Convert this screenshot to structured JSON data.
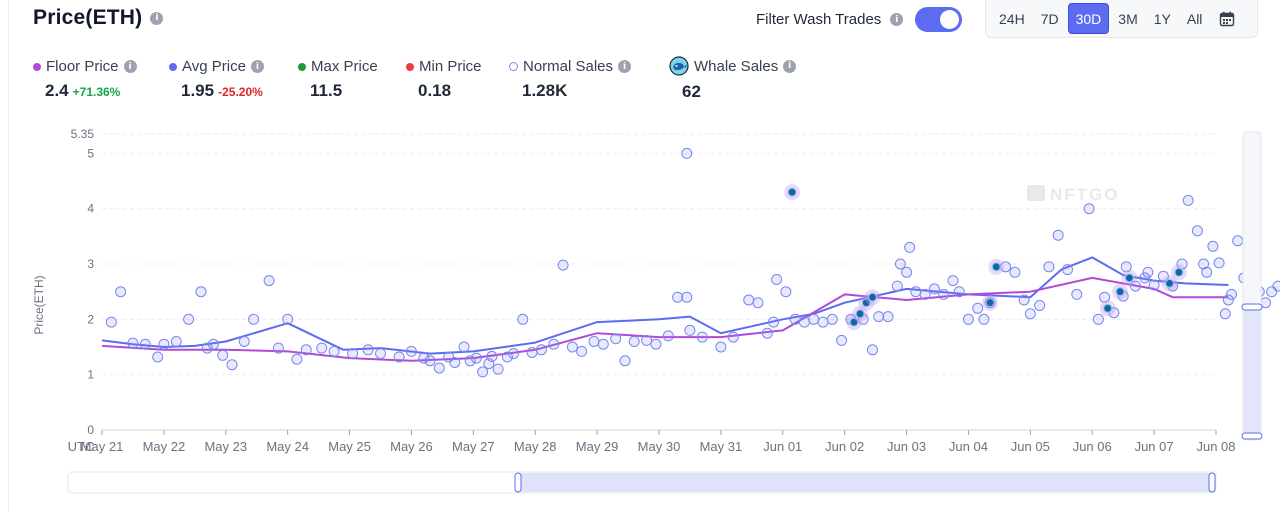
{
  "header": {
    "title": "Price(ETH)",
    "info_glyph": "i",
    "wash_filter": {
      "label": "Filter Wash Trades",
      "enabled": true
    },
    "ranges": [
      "24H",
      "7D",
      "30D",
      "3M",
      "1Y",
      "All"
    ],
    "active_range": "30D"
  },
  "legend": {
    "floor": {
      "label": "Floor Price",
      "value": "2.4",
      "change": "+71.36%",
      "color": "#b04ad8"
    },
    "avg": {
      "label": "Avg Price",
      "value": "1.95",
      "change": "-25.20%",
      "color": "#5b6cf0"
    },
    "max": {
      "label": "Max Price",
      "value": "11.5",
      "color": "#1a9b3c"
    },
    "min": {
      "label": "Min Price",
      "value": "0.18",
      "color": "#ee3c3c"
    },
    "normal": {
      "label": "Normal Sales",
      "value": "1.28K",
      "color": "#7a86f0"
    },
    "whale": {
      "label": "Whale Sales",
      "value": "62",
      "icon": "whale-icon"
    }
  },
  "chart_data": {
    "type": "line",
    "watermark": "NFTGO",
    "ylabel": "Price(ETH)",
    "ylim": [
      0,
      5.35
    ],
    "yticks": [
      "0",
      "1",
      "2",
      "3",
      "4",
      "5",
      "5.35"
    ],
    "x_prefix": "UTC",
    "x_labels": [
      "May 21",
      "May 22",
      "May 23",
      "May 24",
      "May 25",
      "May 26",
      "May 27",
      "May 28",
      "May 29",
      "May 30",
      "May 31",
      "Jun 01",
      "Jun 02",
      "Jun 03",
      "Jun 04",
      "Jun 05",
      "Jun 06",
      "Jun 07",
      "Jun 08"
    ],
    "series": [
      {
        "name": "Avg Price",
        "color": "#5b6cf0",
        "points": [
          [
            0,
            1.62
          ],
          [
            0.5,
            1.55
          ],
          [
            1.0,
            1.5
          ],
          [
            1.5,
            1.52
          ],
          [
            2.0,
            1.6
          ],
          [
            3.0,
            1.93
          ],
          [
            3.9,
            1.45
          ],
          [
            4.5,
            1.48
          ],
          [
            5.3,
            1.38
          ],
          [
            6.0,
            1.42
          ],
          [
            7.0,
            1.58
          ],
          [
            8.0,
            1.95
          ],
          [
            9.0,
            2.0
          ],
          [
            9.5,
            2.05
          ],
          [
            10.0,
            1.75
          ],
          [
            11.0,
            2.0
          ],
          [
            11.5,
            2.1
          ],
          [
            12.0,
            2.3
          ],
          [
            13.0,
            2.55
          ],
          [
            14.0,
            2.45
          ],
          [
            15.0,
            2.4
          ],
          [
            15.5,
            2.9
          ],
          [
            16.0,
            3.12
          ],
          [
            16.5,
            2.8
          ],
          [
            17.0,
            2.7
          ],
          [
            17.5,
            2.65
          ],
          [
            18.2,
            2.62
          ]
        ]
      },
      {
        "name": "Floor Price",
        "color": "#b04ad8",
        "points": [
          [
            0,
            1.52
          ],
          [
            1.0,
            1.45
          ],
          [
            2.0,
            1.45
          ],
          [
            3.0,
            1.42
          ],
          [
            4.0,
            1.3
          ],
          [
            5.0,
            1.25
          ],
          [
            6.0,
            1.3
          ],
          [
            7.0,
            1.45
          ],
          [
            8.0,
            1.75
          ],
          [
            9.0,
            1.68
          ],
          [
            10.0,
            1.68
          ],
          [
            11.0,
            1.8
          ],
          [
            12.0,
            2.45
          ],
          [
            12.5,
            2.4
          ],
          [
            13.0,
            2.35
          ],
          [
            14.0,
            2.45
          ],
          [
            15.0,
            2.5
          ],
          [
            16.0,
            2.75
          ],
          [
            17.0,
            2.55
          ],
          [
            17.3,
            2.4
          ],
          [
            18.2,
            2.4
          ]
        ]
      }
    ],
    "normal_sales": [
      [
        0.15,
        1.95
      ],
      [
        0.3,
        2.5
      ],
      [
        0.5,
        1.57
      ],
      [
        0.7,
        1.55
      ],
      [
        0.9,
        1.32
      ],
      [
        1.0,
        1.55
      ],
      [
        1.2,
        1.6
      ],
      [
        1.4,
        2.0
      ],
      [
        1.6,
        2.5
      ],
      [
        1.7,
        1.48
      ],
      [
        1.8,
        1.55
      ],
      [
        1.95,
        1.35
      ],
      [
        2.1,
        1.18
      ],
      [
        2.3,
        1.6
      ],
      [
        2.45,
        2.0
      ],
      [
        2.7,
        2.7
      ],
      [
        2.85,
        1.48
      ],
      [
        3.0,
        2.0
      ],
      [
        3.15,
        1.28
      ],
      [
        3.3,
        1.45
      ],
      [
        3.55,
        1.48
      ],
      [
        3.75,
        1.42
      ],
      [
        4.05,
        1.38
      ],
      [
        4.3,
        1.45
      ],
      [
        4.5,
        1.38
      ],
      [
        4.8,
        1.32
      ],
      [
        5.0,
        1.42
      ],
      [
        5.2,
        1.3
      ],
      [
        5.3,
        1.25
      ],
      [
        5.45,
        1.12
      ],
      [
        5.6,
        1.32
      ],
      [
        5.7,
        1.22
      ],
      [
        5.85,
        1.5
      ],
      [
        5.95,
        1.25
      ],
      [
        6.05,
        1.3
      ],
      [
        6.15,
        1.05
      ],
      [
        6.25,
        1.2
      ],
      [
        6.3,
        1.33
      ],
      [
        6.4,
        1.1
      ],
      [
        6.55,
        1.32
      ],
      [
        6.65,
        1.38
      ],
      [
        6.8,
        2.0
      ],
      [
        6.95,
        1.4
      ],
      [
        7.1,
        1.45
      ],
      [
        7.3,
        1.55
      ],
      [
        7.45,
        2.98
      ],
      [
        7.6,
        1.5
      ],
      [
        7.75,
        1.42
      ],
      [
        7.95,
        1.6
      ],
      [
        8.1,
        1.55
      ],
      [
        8.3,
        1.65
      ],
      [
        8.45,
        1.25
      ],
      [
        8.6,
        1.6
      ],
      [
        8.8,
        1.62
      ],
      [
        8.95,
        1.55
      ],
      [
        9.15,
        1.7
      ],
      [
        9.3,
        2.4
      ],
      [
        9.45,
        2.4
      ],
      [
        9.5,
        1.8
      ],
      [
        9.7,
        1.68
      ],
      [
        10.0,
        1.5
      ],
      [
        10.2,
        1.68
      ],
      [
        10.45,
        2.35
      ],
      [
        10.6,
        2.3
      ],
      [
        10.75,
        1.75
      ],
      [
        10.85,
        1.95
      ],
      [
        10.9,
        2.72
      ],
      [
        11.05,
        2.5
      ],
      [
        11.2,
        2.0
      ],
      [
        11.35,
        1.95
      ],
      [
        11.5,
        2.0
      ],
      [
        11.65,
        1.95
      ],
      [
        11.8,
        2.0
      ],
      [
        11.95,
        1.62
      ],
      [
        12.1,
        2.0
      ],
      [
        12.3,
        2.0
      ],
      [
        12.45,
        1.45
      ],
      [
        12.55,
        2.05
      ],
      [
        12.7,
        2.05
      ],
      [
        12.85,
        2.6
      ],
      [
        12.9,
        3.0
      ],
      [
        13.0,
        2.85
      ],
      [
        13.05,
        3.3
      ],
      [
        13.15,
        2.5
      ],
      [
        13.3,
        2.45
      ],
      [
        13.45,
        2.55
      ],
      [
        13.6,
        2.45
      ],
      [
        13.75,
        2.7
      ],
      [
        13.85,
        2.5
      ],
      [
        14.0,
        2.0
      ],
      [
        14.15,
        2.2
      ],
      [
        14.25,
        2.0
      ],
      [
        14.35,
        2.3
      ],
      [
        14.6,
        2.95
      ],
      [
        14.75,
        2.85
      ],
      [
        14.9,
        2.35
      ],
      [
        15.0,
        2.1
      ],
      [
        15.15,
        2.25
      ],
      [
        15.3,
        2.95
      ],
      [
        15.45,
        3.52
      ],
      [
        15.6,
        2.9
      ],
      [
        15.75,
        2.45
      ],
      [
        15.95,
        4.0
      ],
      [
        16.2,
        2.4
      ],
      [
        16.35,
        2.12
      ],
      [
        16.5,
        2.42
      ],
      [
        16.7,
        2.6
      ],
      [
        16.85,
        2.75
      ],
      [
        17.0,
        2.62
      ],
      [
        17.15,
        2.78
      ],
      [
        17.3,
        2.6
      ],
      [
        17.45,
        3.0
      ],
      [
        17.55,
        4.15
      ],
      [
        17.7,
        3.6
      ],
      [
        17.85,
        2.85
      ],
      [
        17.95,
        3.32
      ],
      [
        18.05,
        3.02
      ],
      [
        18.15,
        2.1
      ],
      [
        18.2,
        2.35
      ],
      [
        18.25,
        2.45
      ],
      [
        18.35,
        3.42
      ],
      [
        18.45,
        2.75
      ],
      [
        18.55,
        2.55
      ],
      [
        18.7,
        2.5
      ],
      [
        18.8,
        2.3
      ],
      [
        18.9,
        2.5
      ],
      [
        19.0,
        2.6
      ],
      [
        9.45,
        5.0
      ],
      [
        16.1,
        2.0
      ],
      [
        16.55,
        2.95
      ],
      [
        16.9,
        2.85
      ],
      [
        17.8,
        3.0
      ]
    ],
    "whale_sales": [
      [
        11.15,
        4.3
      ],
      [
        12.15,
        1.95
      ],
      [
        12.25,
        2.1
      ],
      [
        12.35,
        2.3
      ],
      [
        12.45,
        2.4
      ],
      [
        14.35,
        2.3
      ],
      [
        14.45,
        2.95
      ],
      [
        16.25,
        2.2
      ],
      [
        16.45,
        2.5
      ],
      [
        16.6,
        2.75
      ],
      [
        17.25,
        2.65
      ],
      [
        17.4,
        2.85
      ]
    ]
  }
}
